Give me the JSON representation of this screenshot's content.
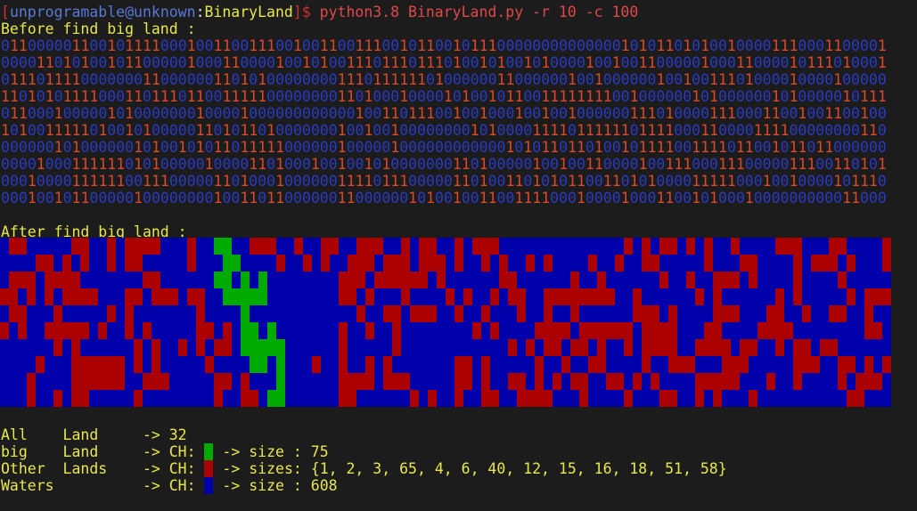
{
  "prompt": {
    "open": "[",
    "user": "unprogramable@unknown",
    "sep": ":",
    "cwd": "BinaryLand",
    "close": "]$",
    "command": "python3.8 BinaryLand.py -r 10 -c 100"
  },
  "before": {
    "heading": "Before find big land :",
    "rows": [
      "0110000011001011110001001100111001001100111001011001011100000000000000101011010100100001110001100001",
      "0000110101001011000001000110000100101001110111011101001010010100001001001100000100011000010111010001",
      "0111011110000000110000001101010000000011101111110100000011000000100100000010010011101000010000100000",
      "1101010111100011011101100111110000000011010001000010100101100111111110010000001010000001010000010111",
      "0110001000001010000000100001000000000000100110111001001000100100100000011101000011100011001001100100",
      "1010011111010010100000110101101000000010010010000000010100001111011111101111000110000111100000000110",
      "0000001010000001010010101101111100000010000010000000000001010110110100101111001111011001011011000000",
      "0000100011111101010000010000110100010010010100000001101000001001001100001001110001110000011100110101",
      "0001000011111100111000001101000100000011110111000001101001101010110011010100001111100010010000101110",
      "0001001011000001000000001001101100000011000000101001001100111100010000100011001010001000000000011000"
    ]
  },
  "after": {
    "heading": "After find big land :"
  },
  "colors": {
    "water": "#0000aa",
    "other": "#aa0000",
    "big": "#00aa00"
  },
  "summary": [
    {
      "text": "All    Land     -> 32"
    },
    {
      "text": "big    Land     -> CH:",
      "swatch": "big",
      "result": "-> size : 75"
    },
    {
      "text": "Other  Lands    -> CH:",
      "swatch": "other",
      "result": "-> sizes: {1, 2, 3, 65, 4, 6, 40, 12, 15, 16, 18, 51, 58}"
    },
    {
      "text": "Waters          -> CH:",
      "swatch": "water",
      "result": "-> size : 608"
    }
  ]
}
